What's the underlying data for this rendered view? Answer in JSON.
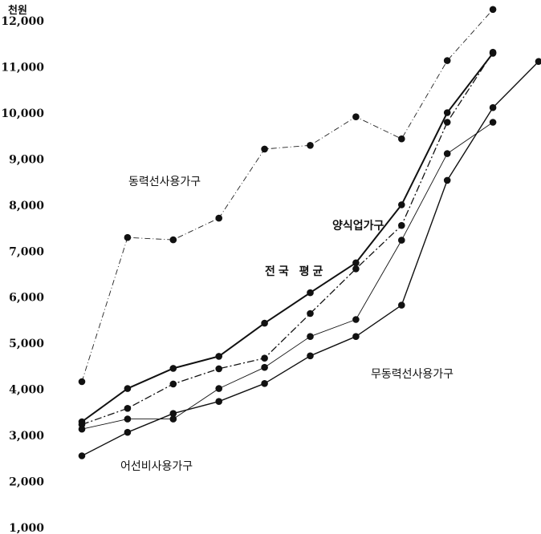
{
  "chart_data": {
    "type": "line",
    "unit_label": "천원",
    "yticks": [
      "12,000",
      "11,000",
      "10,000",
      "9,000",
      "8,000",
      "7,000",
      "6,000",
      "5,000",
      "4,000",
      "3,000",
      "2,000",
      "1,000"
    ],
    "ylim": [
      1000,
      12000
    ],
    "x_count": 11,
    "grid": false,
    "series": [
      {
        "name": "동력선사용가구",
        "style": "thin-dash-dot",
        "color": "#222222",
        "values": [
          4150,
          7280,
          7230,
          7700,
          9200,
          9280,
          9900,
          9420,
          11120,
          12230
        ]
      },
      {
        "name": "양식업가구",
        "style": "solid-bold",
        "color": "#111111",
        "values": [
          3280,
          4000,
          4440,
          4700,
          5420,
          6080,
          6730,
          7990,
          9990,
          11280
        ]
      },
      {
        "name": "전국평균",
        "style": "dash-dot",
        "color": "#111111",
        "values": [
          3220,
          3570,
          4100,
          4430,
          4660,
          5630,
          6600,
          7540,
          9780,
          11300
        ]
      },
      {
        "name": "무동력선사용가구",
        "style": "thin-solid",
        "color": "#111111",
        "values": [
          3120,
          3340,
          3340,
          4000,
          4460,
          5130,
          5500,
          7220,
          9100,
          9780
        ]
      },
      {
        "name": "어선비사용가구",
        "style": "solid",
        "color": "#111111",
        "values": [
          2540,
          3050,
          3460,
          3720,
          4110,
          4710,
          5130,
          5810,
          8520,
          10100,
          11100
        ]
      }
    ],
    "labels": {
      "dongryeok": "동력선사용가구",
      "yangsik": "양식업가구",
      "national": "전국 평균",
      "mudongryeok": "무동력선사용가구",
      "eoseon": "어선비사용가구"
    }
  }
}
